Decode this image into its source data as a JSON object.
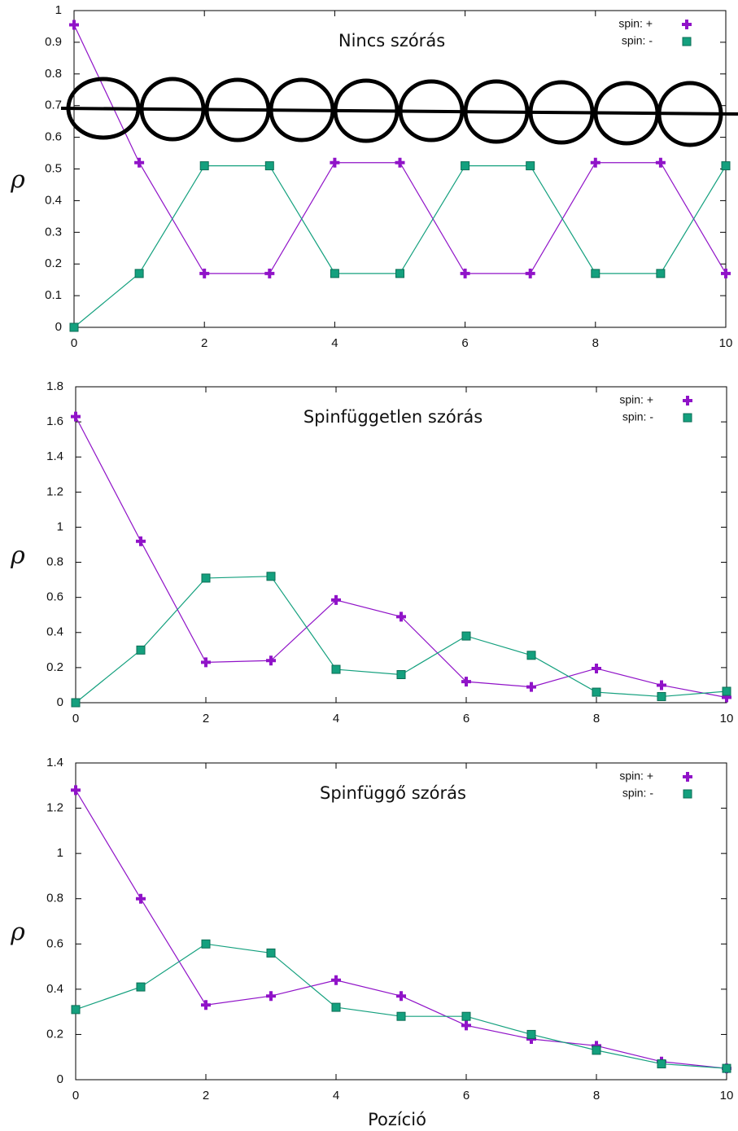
{
  "chart_data": [
    {
      "type": "line",
      "title": "Nincs szórás",
      "ylabel": "ρ",
      "x": [
        0,
        1,
        2,
        3,
        4,
        5,
        6,
        7,
        8,
        9,
        10
      ],
      "xlim": [
        0,
        10
      ],
      "xticks": [
        0,
        2,
        4,
        6,
        8,
        10
      ],
      "ylim": [
        0,
        1
      ],
      "yticks": [
        0,
        0.1,
        0.2,
        0.3,
        0.4,
        0.5,
        0.6,
        0.7,
        0.8,
        0.9,
        1
      ],
      "legend": "upper right",
      "series": [
        {
          "name": "spin: +",
          "color": "#9013c8",
          "marker": "plus",
          "values": [
            0.955,
            0.52,
            0.17,
            0.17,
            0.52,
            0.52,
            0.17,
            0.17,
            0.52,
            0.52,
            0.17
          ]
        },
        {
          "name": "spin: -",
          "color": "#14a07e",
          "marker": "square",
          "values": [
            0,
            0.17,
            0.51,
            0.51,
            0.17,
            0.17,
            0.51,
            0.51,
            0.17,
            0.17,
            0.51
          ]
        }
      ]
    },
    {
      "type": "line",
      "title": "Spinfüggetlen szórás",
      "ylabel": "ρ",
      "x": [
        0,
        1,
        2,
        3,
        4,
        5,
        6,
        7,
        8,
        9,
        10
      ],
      "xlim": [
        0,
        10
      ],
      "xticks": [
        0,
        2,
        4,
        6,
        8,
        10
      ],
      "ylim": [
        0,
        1.8
      ],
      "yticks": [
        0,
        0.2,
        0.4,
        0.6,
        0.8,
        1,
        1.2,
        1.4,
        1.6,
        1.8
      ],
      "legend": "upper right",
      "series": [
        {
          "name": "spin: +",
          "color": "#9013c8",
          "marker": "plus",
          "values": [
            1.63,
            0.92,
            0.23,
            0.24,
            0.585,
            0.49,
            0.12,
            0.09,
            0.195,
            0.1,
            0.03
          ]
        },
        {
          "name": "spin: -",
          "color": "#14a07e",
          "marker": "square",
          "values": [
            0,
            0.3,
            0.71,
            0.72,
            0.19,
            0.16,
            0.38,
            0.27,
            0.06,
            0.035,
            0.065
          ]
        }
      ]
    },
    {
      "type": "line",
      "title": "Spinfüggő szórás",
      "ylabel": "ρ",
      "xlabel": "Pozíció",
      "x": [
        0,
        1,
        2,
        3,
        4,
        5,
        6,
        7,
        8,
        9,
        10
      ],
      "xlim": [
        0,
        10
      ],
      "xticks": [
        0,
        2,
        4,
        6,
        8,
        10
      ],
      "ylim": [
        0,
        1.4
      ],
      "yticks": [
        0,
        0.2,
        0.4,
        0.6,
        0.8,
        1,
        1.2,
        1.4
      ],
      "legend": "upper right",
      "series": [
        {
          "name": "spin: +",
          "color": "#9013c8",
          "marker": "plus",
          "values": [
            1.28,
            0.8,
            0.33,
            0.37,
            0.44,
            0.37,
            0.24,
            0.18,
            0.15,
            0.08,
            0.05
          ]
        },
        {
          "name": "spin: -",
          "color": "#14a07e",
          "marker": "square",
          "values": [
            0.31,
            0.41,
            0.6,
            0.56,
            0.32,
            0.28,
            0.28,
            0.2,
            0.13,
            0.07,
            0.05
          ]
        }
      ]
    }
  ]
}
